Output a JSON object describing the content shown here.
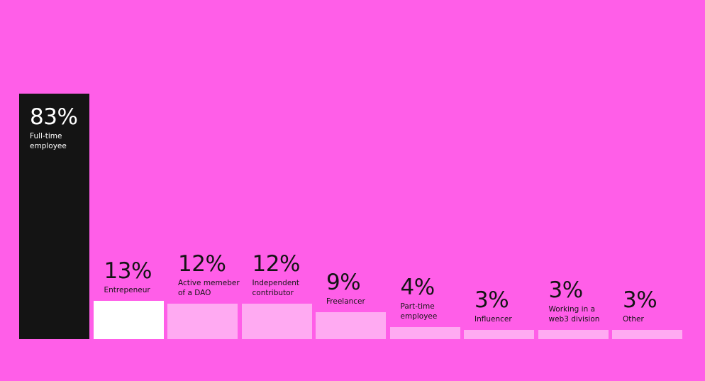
{
  "chart_data": {
    "type": "bar",
    "categories": [
      "Full-time employee",
      "Entrepeneur",
      "Active memeber of a DAO",
      "Independent contributor",
      "Freelancer",
      "Part-time employee",
      "Influencer",
      "Working in a web3 division",
      "Other"
    ],
    "label_lines": [
      [
        "Full-time",
        "employee"
      ],
      [
        "Entrepeneur"
      ],
      [
        "Active memeber",
        "of a DAO"
      ],
      [
        "Independent",
        "contributor"
      ],
      [
        "Freelancer"
      ],
      [
        "Part-time",
        "employee"
      ],
      [
        "Influencer"
      ],
      [
        "Working in a",
        "web3 division"
      ],
      [
        "Other"
      ]
    ],
    "values": [
      83,
      13,
      12,
      12,
      9,
      4,
      3,
      3,
      3
    ],
    "value_labels": [
      "83%",
      "13%",
      "12%",
      "12%",
      "9%",
      "4%",
      "3%",
      "3%",
      "3%"
    ],
    "ylim": [
      0,
      100
    ],
    "grid": false,
    "legend": "none"
  },
  "colors": {
    "background": "#ff5ee8",
    "highlight_bar": "#141414",
    "second_bar": "#ffffff",
    "other_bars": "#ffaaf2",
    "text_dark": "#141414",
    "text_light": "#ffffff"
  }
}
